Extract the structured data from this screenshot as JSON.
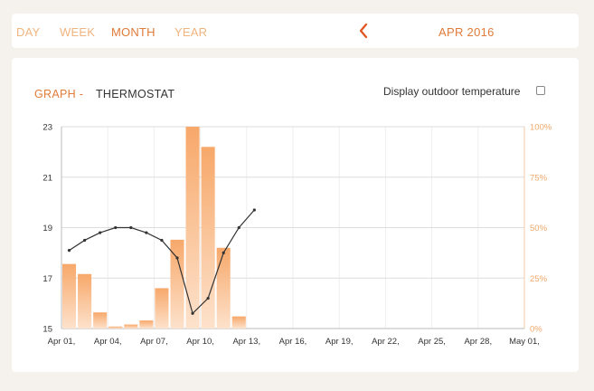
{
  "nav": {
    "tabs": [
      {
        "label": "DAY",
        "active": false
      },
      {
        "label": "WEEK",
        "active": false
      },
      {
        "label": "MONTH",
        "active": true
      },
      {
        "label": "YEAR",
        "active": false
      }
    ],
    "period_label": "APR 2016"
  },
  "panel": {
    "graph_title": "GRAPH -",
    "graph_name": "THERMOSTAT",
    "outdoor_label": "Display outdoor temperature",
    "outdoor_checked": false
  },
  "colors": {
    "accent": "#e07b39",
    "bar_top": "#f7a86a",
    "bar_bottom": "#fde2cc",
    "line": "#333333",
    "grid": "#dddddd"
  },
  "icons": {
    "prev": "chevron-left-icon"
  },
  "chart_data": {
    "type": "bar",
    "title": "",
    "x_tick_labels": [
      "Apr 01,",
      "Apr 04,",
      "Apr 07,",
      "Apr 10,",
      "Apr 13,",
      "Apr 16,",
      "Apr 19,",
      "Apr 22,",
      "Apr 25,",
      "Apr 28,",
      "May 01,"
    ],
    "y_left_ticks": [
      "15",
      "17",
      "19",
      "21",
      "23"
    ],
    "y_left_range": [
      15,
      23
    ],
    "y_right_ticks": [
      "0%",
      "25%",
      "50%",
      "75%",
      "100%"
    ],
    "y_right_range": [
      0,
      100
    ],
    "grid": true,
    "days": [
      "Apr 01",
      "Apr 02",
      "Apr 03",
      "Apr 04",
      "Apr 05",
      "Apr 06",
      "Apr 07",
      "Apr 08",
      "Apr 09",
      "Apr 10",
      "Apr 11",
      "Apr 12",
      "Apr 13"
    ],
    "bar_values_percent": [
      32,
      27,
      8,
      1,
      2,
      4,
      20,
      44,
      100,
      90,
      40,
      6,
      0
    ],
    "line_values": [
      18.1,
      18.5,
      18.8,
      19.0,
      19.0,
      18.8,
      18.5,
      17.8,
      15.6,
      16.2,
      18.0,
      19.0,
      19.7
    ]
  }
}
